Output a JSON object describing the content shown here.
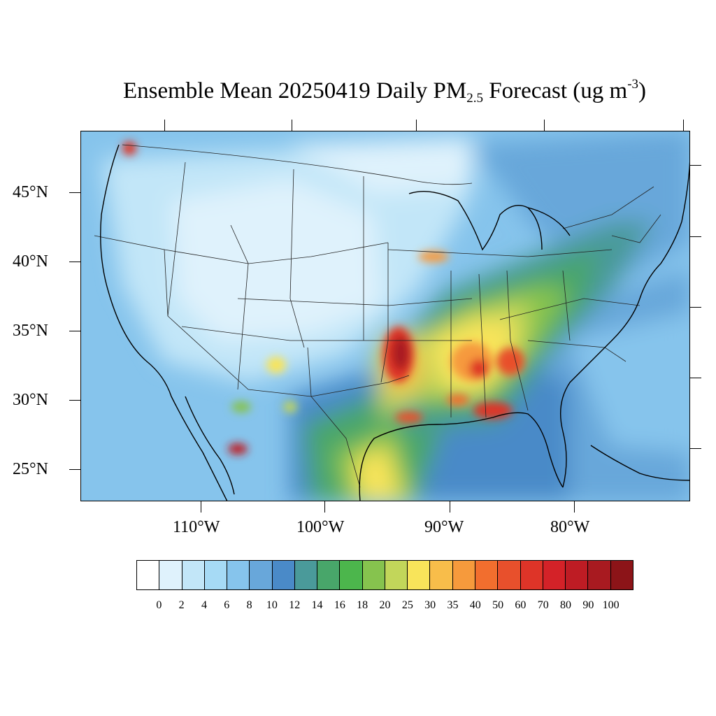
{
  "title": {
    "main": "Ensemble Mean 20250419 Daily PM",
    "sub": "2.5",
    "after": " Forecast (ug m",
    "sup": "-3",
    "close": ")"
  },
  "lat_labels": [
    "45°N",
    "40°N",
    "35°N",
    "30°N",
    "25°N"
  ],
  "lon_labels": [
    "110°W",
    "100°W",
    "90°W",
    "80°W"
  ],
  "colorbar": {
    "colors": [
      "#ffffff",
      "#dff2fc",
      "#c2e6f8",
      "#a6daf5",
      "#86c4ec",
      "#68a7da",
      "#4a8ac8",
      "#4a9a9a",
      "#48a66a",
      "#4cb64c",
      "#86c34e",
      "#c2d65a",
      "#f8e45a",
      "#f8bd4a",
      "#f69a3c",
      "#f26e2e",
      "#e8502c",
      "#de3428",
      "#d42228",
      "#be1c24",
      "#a81a20",
      "#8c1418"
    ],
    "labels": [
      "0",
      "2",
      "4",
      "6",
      "8",
      "10",
      "12",
      "14",
      "16",
      "18",
      "20",
      "25",
      "30",
      "35",
      "40",
      "50",
      "60",
      "70",
      "80",
      "90",
      "100"
    ]
  }
}
